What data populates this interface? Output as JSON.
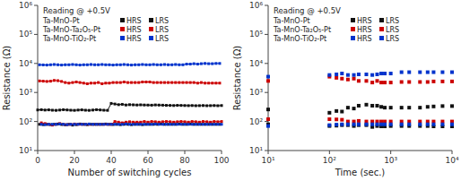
{
  "chart_data": [
    {
      "type": "line",
      "xlabel": "Number of switching cycles",
      "ylabel": "Resistance (Ω)",
      "annotations": [
        "Reading @ +0.5V",
        "Ta-MnO-Pt",
        "Ta-MnO-Ta₂O₅-Pt",
        "Ta-MnO-TiO₂-Pt"
      ],
      "log": "y",
      "grid": false,
      "marker": "square",
      "line_style": "solid",
      "xlim": [
        0,
        100
      ],
      "xticks": [
        0,
        20,
        40,
        60,
        80,
        100
      ],
      "ylim": [
        10,
        1000000
      ],
      "yticks": [
        {
          "value": 10,
          "label": "10¹"
        },
        {
          "value": 100,
          "label": "10²"
        },
        {
          "value": 1000,
          "label": "10³"
        },
        {
          "value": 10000,
          "label": "10⁴"
        },
        {
          "value": 100000,
          "label": "10⁵"
        },
        {
          "value": 1000000,
          "label": "10⁶"
        }
      ],
      "series": [
        {
          "name": "HRS",
          "color": "#111111",
          "x": [
            0,
            2,
            4,
            6,
            8,
            10,
            12,
            14,
            16,
            18,
            20,
            22,
            24,
            26,
            28,
            30,
            32,
            34,
            36,
            38,
            40,
            42,
            44,
            46,
            48,
            50,
            52,
            54,
            56,
            58,
            60,
            62,
            64,
            66,
            68,
            70,
            72,
            74,
            76,
            78,
            80,
            82,
            84,
            86,
            88,
            90,
            92,
            94,
            96,
            98,
            100
          ],
          "values": [
            250,
            255,
            248,
            252,
            245,
            242,
            248,
            255,
            250,
            245,
            242,
            248,
            252,
            245,
            242,
            248,
            255,
            250,
            245,
            242,
            420,
            400,
            380,
            390,
            370,
            380,
            375,
            370,
            375,
            370,
            368,
            365,
            372,
            368,
            365,
            360,
            358,
            355,
            360,
            358,
            355,
            352,
            355,
            350,
            352,
            355,
            350,
            352,
            355,
            350,
            355
          ]
        },
        {
          "name": "LRS",
          "color": "#111111",
          "x": [
            1,
            3,
            5,
            7,
            9,
            11,
            13,
            15,
            17,
            19,
            21,
            23,
            25,
            27,
            29,
            31,
            33,
            35,
            37,
            39,
            41,
            43,
            45,
            47,
            49,
            51,
            53,
            55,
            57,
            59,
            61,
            63,
            65,
            67,
            69,
            71,
            73,
            75,
            77,
            79,
            81,
            83,
            85,
            87,
            89,
            91,
            93,
            95,
            97,
            99
          ],
          "values": [
            80,
            78,
            80,
            78,
            80,
            82,
            79,
            77,
            80,
            75,
            78,
            82,
            80,
            78,
            80,
            80,
            80,
            80,
            82,
            80,
            79,
            80,
            78,
            80,
            80,
            78,
            80,
            80,
            78,
            80,
            80,
            80,
            80,
            82,
            80,
            80,
            80,
            80,
            82,
            80,
            80,
            82,
            80,
            80,
            80,
            80,
            80,
            80,
            80,
            80
          ]
        },
        {
          "name": "HRS",
          "color": "#cc0000",
          "x": [
            1,
            3,
            5,
            7,
            9,
            11,
            13,
            15,
            17,
            19,
            21,
            23,
            25,
            27,
            29,
            31,
            33,
            35,
            37,
            39,
            41,
            43,
            45,
            47,
            49,
            51,
            53,
            55,
            57,
            59,
            61,
            63,
            65,
            67,
            69,
            71,
            73,
            75,
            77,
            79,
            81,
            83,
            85,
            87,
            89,
            91,
            93,
            95,
            97,
            99
          ],
          "values": [
            2500,
            2450,
            2400,
            2450,
            2600,
            2550,
            2400,
            2200,
            2100,
            2200,
            2300,
            2200,
            2100,
            2000,
            2100,
            2100,
            2200,
            2000,
            2100,
            2100,
            2200,
            2200,
            2200,
            2300,
            2200,
            2200,
            2200,
            2200,
            2300,
            2300,
            2300,
            2200,
            2200,
            2200,
            2200,
            2200,
            2200,
            2200,
            2200,
            2200,
            2200,
            2200,
            2200,
            2100,
            2200,
            2100,
            2100,
            2100,
            2100,
            2100
          ]
        },
        {
          "name": "LRS",
          "color": "#cc0000",
          "x": [
            2,
            4,
            6,
            8,
            10,
            12,
            14,
            16,
            18,
            20,
            22,
            24,
            26,
            28,
            30,
            32,
            34,
            36,
            38,
            40,
            42,
            44,
            46,
            48,
            50,
            52,
            54,
            56,
            58,
            60,
            62,
            64,
            66,
            68,
            70,
            72,
            74,
            76,
            78,
            80,
            82,
            84,
            86,
            88,
            90,
            92,
            94,
            96,
            98,
            100
          ],
          "values": [
            90,
            85,
            80,
            75,
            80,
            85,
            80,
            78,
            80,
            82,
            80,
            80,
            80,
            80,
            80,
            80,
            80,
            80,
            80,
            80,
            100,
            95,
            90,
            95,
            98,
            95,
            95,
            95,
            100,
            95,
            100,
            98,
            95,
            98,
            100,
            98,
            95,
            98,
            100,
            98,
            95,
            100,
            98,
            95,
            100,
            98,
            95,
            100,
            98,
            100
          ]
        },
        {
          "name": "HRS",
          "color": "#0033cc",
          "x": [
            1,
            3,
            5,
            7,
            9,
            11,
            13,
            15,
            17,
            19,
            21,
            23,
            25,
            27,
            29,
            31,
            33,
            35,
            37,
            39,
            41,
            43,
            45,
            47,
            49,
            51,
            53,
            55,
            57,
            59,
            61,
            63,
            65,
            67,
            69,
            71,
            73,
            75,
            77,
            79,
            81,
            83,
            85,
            87,
            89,
            91,
            93,
            95,
            97,
            99
          ],
          "values": [
            9000,
            8900,
            8800,
            9000,
            9200,
            9000,
            8800,
            9000,
            9000,
            9200,
            9000,
            8800,
            9000,
            9000,
            9200,
            9000,
            9000,
            9200,
            9000,
            9000,
            8800,
            9000,
            9000,
            9200,
            9000,
            8800,
            9000,
            9000,
            9200,
            9000,
            9000,
            9200,
            9000,
            9000,
            9200,
            9000,
            9000,
            9200,
            9000,
            9000,
            9500,
            9500,
            9800,
            9500,
            9800,
            10000,
            9800,
            9800,
            10000,
            10000
          ]
        },
        {
          "name": "LRS",
          "color": "#0033cc",
          "x": [
            2,
            4,
            6,
            8,
            10,
            12,
            14,
            16,
            18,
            20,
            22,
            24,
            26,
            28,
            30,
            32,
            34,
            36,
            38,
            40,
            42,
            44,
            46,
            48,
            50,
            52,
            54,
            56,
            58,
            60,
            62,
            64,
            66,
            68,
            70,
            72,
            74,
            76,
            78,
            80,
            82,
            84,
            86,
            88,
            90,
            92,
            94,
            96,
            98,
            100
          ],
          "values": [
            80,
            78,
            80,
            80,
            80,
            82,
            80,
            78,
            80,
            80,
            80,
            80,
            80,
            82,
            80,
            80,
            80,
            80,
            80,
            80,
            80,
            80,
            80,
            82,
            80,
            80,
            80,
            80,
            80,
            80,
            80,
            82,
            80,
            80,
            80,
            80,
            80,
            80,
            80,
            80,
            80,
            80,
            80,
            80,
            80,
            80,
            80,
            80,
            80,
            80
          ]
        }
      ]
    },
    {
      "type": "scatter",
      "xlabel": "Time (sec.)",
      "ylabel": "Resistance (Ω)",
      "annotations": [
        "Reading @ +0.5V",
        "Ta-MnO-Pt",
        "Ta-MnO-Ta₂O₅-Pt",
        "Ta-MnO-TiO₂-Pt"
      ],
      "log": true,
      "grid": false,
      "marker": "square",
      "xlim": [
        10,
        10000
      ],
      "xticks": [
        {
          "value": 10,
          "label": "10¹"
        },
        {
          "value": 100,
          "label": "10²"
        },
        {
          "value": 1000,
          "label": "10³"
        },
        {
          "value": 10000,
          "label": "10⁴"
        }
      ],
      "ylim": [
        10,
        1000000
      ],
      "yticks": [
        {
          "value": 10,
          "label": "10¹"
        },
        {
          "value": 100,
          "label": "10²"
        },
        {
          "value": 1000,
          "label": "10³"
        },
        {
          "value": 10000,
          "label": "10⁴"
        },
        {
          "value": 100000,
          "label": "10⁵"
        },
        {
          "value": 1000000,
          "label": "10⁶"
        }
      ],
      "x": [
        10,
        100,
        130,
        160,
        200,
        250,
        300,
        400,
        500,
        600,
        700,
        800,
        1000,
        1500,
        2000,
        3000,
        4000,
        5000,
        7000,
        10000
      ],
      "series": [
        {
          "name": "HRS",
          "color": "#111111",
          "values": [
            260,
            200,
            230,
            220,
            300,
            280,
            350,
            380,
            350,
            350,
            320,
            300,
            300,
            300,
            300,
            300,
            320,
            330,
            340,
            340
          ]
        },
        {
          "name": "LRS",
          "color": "#111111",
          "values": [
            80,
            70,
            72,
            75,
            75,
            70,
            75,
            75,
            65,
            70,
            68,
            68,
            70,
            70,
            70,
            70,
            70,
            68,
            68,
            68
          ]
        },
        {
          "name": "HRS",
          "color": "#cc0000",
          "values": [
            2500,
            3500,
            3200,
            3000,
            2800,
            3000,
            2500,
            2500,
            2200,
            2500,
            2200,
            2200,
            2200,
            2300,
            2300,
            2300,
            2300,
            2400,
            2400,
            2400
          ]
        },
        {
          "name": "LRS",
          "color": "#cc0000",
          "values": [
            120,
            120,
            118,
            115,
            100,
            100,
            105,
            100,
            100,
            100,
            100,
            100,
            100,
            100,
            100,
            100,
            100,
            100,
            100,
            100
          ]
        },
        {
          "name": "HRS",
          "color": "#0033cc",
          "values": [
            3500,
            4000,
            4200,
            4500,
            4000,
            4000,
            4200,
            4200,
            4000,
            4200,
            4500,
            4500,
            4500,
            5000,
            5000,
            5000,
            5000,
            5000,
            5000,
            5000
          ]
        },
        {
          "name": "LRS",
          "color": "#0033cc",
          "values": [
            70,
            75,
            78,
            80,
            80,
            80,
            80,
            80,
            80,
            80,
            80,
            80,
            80,
            80,
            80,
            80,
            80,
            80,
            80,
            80
          ]
        }
      ]
    }
  ]
}
